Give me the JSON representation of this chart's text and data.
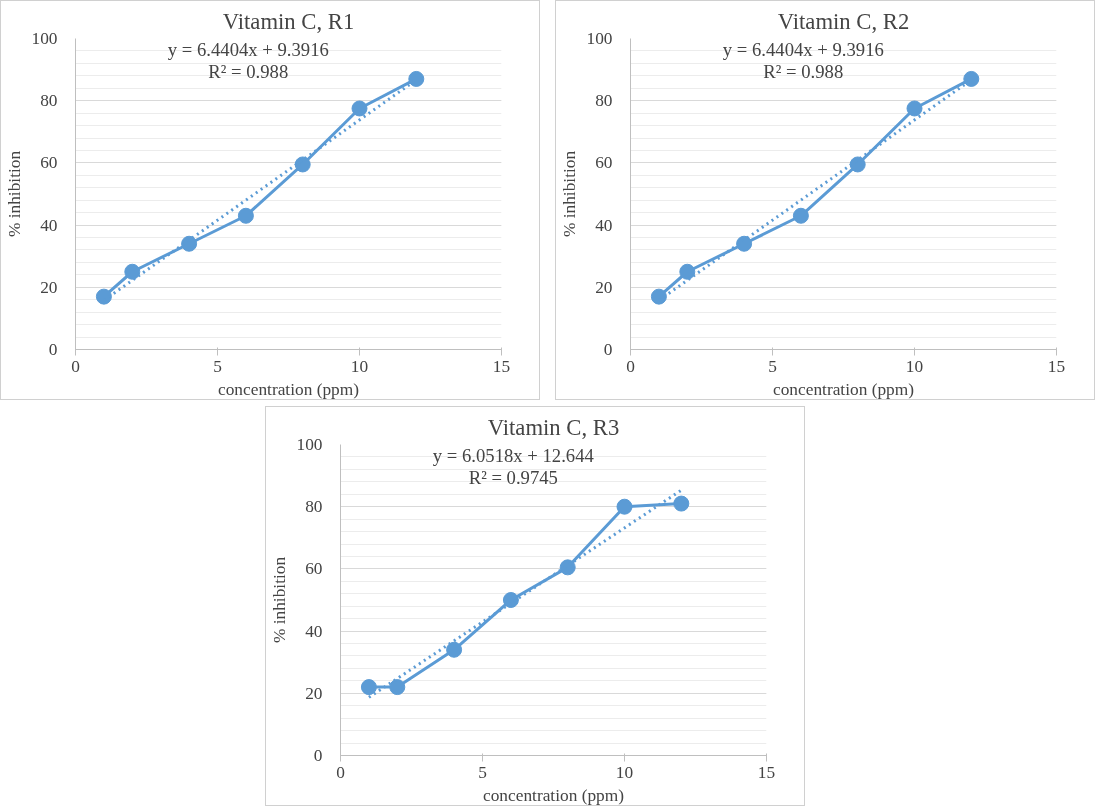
{
  "chart_data": [
    {
      "type": "line",
      "title": "Vitamin C, R1",
      "xlabel": "concentration (ppm)",
      "ylabel": "% inhibition",
      "xlim": [
        0,
        15
      ],
      "xticks": [
        0,
        5,
        10,
        15
      ],
      "ylim": [
        0,
        100
      ],
      "yticks": [
        0,
        20,
        40,
        60,
        80,
        100
      ],
      "grid": "y",
      "annotations": [
        "y = 6.4404x + 9.3916",
        "R² = 0.988"
      ],
      "series": [
        {
          "color": "#5b9bd5",
          "marker": "circle",
          "line_style": "solid",
          "x": [
            1,
            2,
            4,
            6,
            8,
            10,
            12
          ],
          "values": [
            17,
            25,
            34,
            43,
            59.5,
            77.5,
            87
          ]
        },
        {
          "color": "#5b9bd5",
          "marker": "none",
          "line_style": "dotted",
          "x": [
            1,
            12
          ],
          "values": [
            15.8,
            86.7
          ]
        }
      ]
    },
    {
      "type": "line",
      "title": "Vitamin C, R2",
      "xlabel": "concentration (ppm)",
      "ylabel": "% inhibition",
      "xlim": [
        0,
        15
      ],
      "xticks": [
        0,
        5,
        10,
        15
      ],
      "ylim": [
        0,
        100
      ],
      "yticks": [
        0,
        20,
        40,
        60,
        80,
        100
      ],
      "grid": "y",
      "annotations": [
        "y = 6.4404x + 9.3916",
        "R² = 0.988"
      ],
      "series": [
        {
          "color": "#5b9bd5",
          "marker": "circle",
          "line_style": "solid",
          "x": [
            1,
            2,
            4,
            6,
            8,
            10,
            12
          ],
          "values": [
            17,
            25,
            34,
            43,
            59.5,
            77.5,
            87
          ]
        },
        {
          "color": "#5b9bd5",
          "marker": "none",
          "line_style": "dotted",
          "x": [
            1,
            12
          ],
          "values": [
            15.8,
            86.7
          ]
        }
      ]
    },
    {
      "type": "line",
      "title": "Vitamin C, R3",
      "xlabel": "concentration (ppm)",
      "ylabel": "% inhibition",
      "xlim": [
        0,
        15
      ],
      "xticks": [
        0,
        5,
        10,
        15
      ],
      "ylim": [
        0,
        100
      ],
      "yticks": [
        0,
        20,
        40,
        60,
        80,
        100
      ],
      "grid": "y",
      "annotations": [
        "y = 6.0518x + 12.644",
        "R² = 0.9745"
      ],
      "series": [
        {
          "color": "#5b9bd5",
          "marker": "circle",
          "line_style": "solid",
          "x": [
            1,
            2,
            4,
            6,
            8,
            10,
            12
          ],
          "values": [
            22,
            22,
            34,
            50,
            60.5,
            80,
            81
          ]
        },
        {
          "color": "#5b9bd5",
          "marker": "none",
          "line_style": "dotted",
          "x": [
            1,
            12
          ],
          "values": [
            18.7,
            85.3
          ]
        }
      ]
    }
  ]
}
